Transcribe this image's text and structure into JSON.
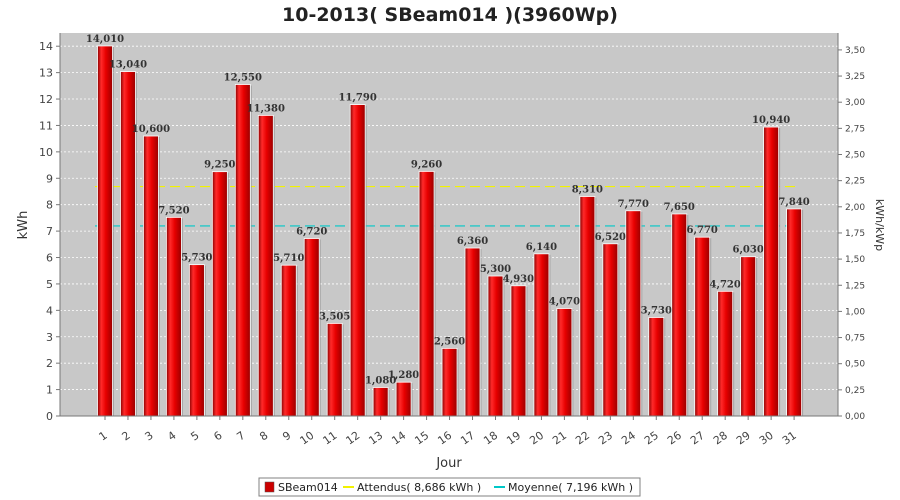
{
  "chart_data": {
    "type": "bar",
    "title": "10-2013( SBeam014 )(3960Wp)",
    "xlabel": "Jour",
    "ylabel": "kWh",
    "y2label": "kWh/kWp",
    "ylim": [
      0,
      14.5
    ],
    "yticks": [
      "0",
      "1",
      "2",
      "3",
      "4",
      "5",
      "6",
      "7",
      "8",
      "9",
      "10",
      "11",
      "12",
      "13",
      "14"
    ],
    "y2lim": [
      0,
      3.6616
    ],
    "y2ticks": [
      "0,00",
      "0,25",
      "0,50",
      "0,75",
      "1,00",
      "1,25",
      "1,50",
      "1,75",
      "2,00",
      "2,25",
      "2,50",
      "2,75",
      "3,00",
      "3,25",
      "3,50"
    ],
    "grid": true,
    "legend_position": "bottom",
    "categories": [
      "1",
      "2",
      "3",
      "4",
      "5",
      "6",
      "7",
      "8",
      "9",
      "10",
      "11",
      "12",
      "13",
      "14",
      "15",
      "16",
      "17",
      "18",
      "19",
      "20",
      "21",
      "22",
      "23",
      "24",
      "25",
      "26",
      "27",
      "28",
      "29",
      "30",
      "31"
    ],
    "series": [
      {
        "name": "SBeam014",
        "color": "#cc0000",
        "values": [
          14.01,
          13.04,
          10.6,
          7.52,
          5.73,
          9.25,
          12.55,
          11.38,
          5.71,
          6.72,
          3.505,
          11.79,
          1.08,
          1.28,
          9.26,
          2.56,
          6.36,
          5.3,
          4.93,
          6.14,
          4.07,
          8.31,
          6.52,
          7.77,
          3.73,
          7.65,
          6.77,
          4.72,
          6.03,
          10.94,
          7.84
        ],
        "labels": [
          "14,010",
          "13,040",
          "10,600",
          "7,520",
          "5,730",
          "9,250",
          "12,550",
          "11,380",
          "5,710",
          "6,720",
          "3,505",
          "11,790",
          "1,080",
          "1,280",
          "9,260",
          "2,560",
          "6,360",
          "5,300",
          "4,930",
          "6,140",
          "4,070",
          "8,310",
          "6,520",
          "7,770",
          "3,730",
          "7,650",
          "6,770",
          "4,720",
          "6,030",
          "10,940",
          "7,840"
        ]
      }
    ],
    "reference_lines": [
      {
        "name": "Attendus( 8,686 kWh )",
        "value": 8.686,
        "color": "#f2f200"
      },
      {
        "name": "Moyenne( 7,196 kWh )",
        "value": 7.196,
        "color": "#00c8c8"
      }
    ]
  },
  "plot_background": "#c8c8c8"
}
